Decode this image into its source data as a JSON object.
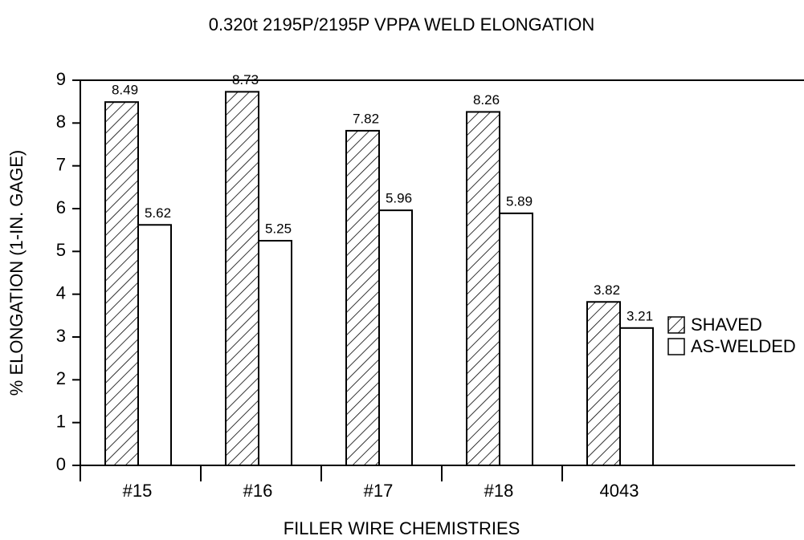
{
  "chart_data": {
    "type": "bar",
    "title": "0.320t 2195P/2195P VPPA WELD ELONGATION",
    "x_label": "FILLER WIRE CHEMISTRIES",
    "y_label": "% ELONGATION (1-IN. GAGE)",
    "categories": [
      "#15",
      "#16",
      "#17",
      "#18",
      "4043"
    ],
    "series": [
      {
        "name": "SHAVED",
        "color": "#ffffff",
        "hatch": true,
        "values": [
          8.49,
          8.73,
          7.82,
          8.26,
          3.82
        ]
      },
      {
        "name": "AS-WELDED",
        "color": "#ffffff",
        "hatch": false,
        "values": [
          5.62,
          5.25,
          5.96,
          5.89,
          3.21
        ]
      }
    ],
    "ylim": [
      0,
      9
    ],
    "yticks": [
      0,
      1,
      2,
      3,
      4,
      5,
      6,
      7,
      8,
      9
    ],
    "grid": false,
    "legend": "right"
  }
}
